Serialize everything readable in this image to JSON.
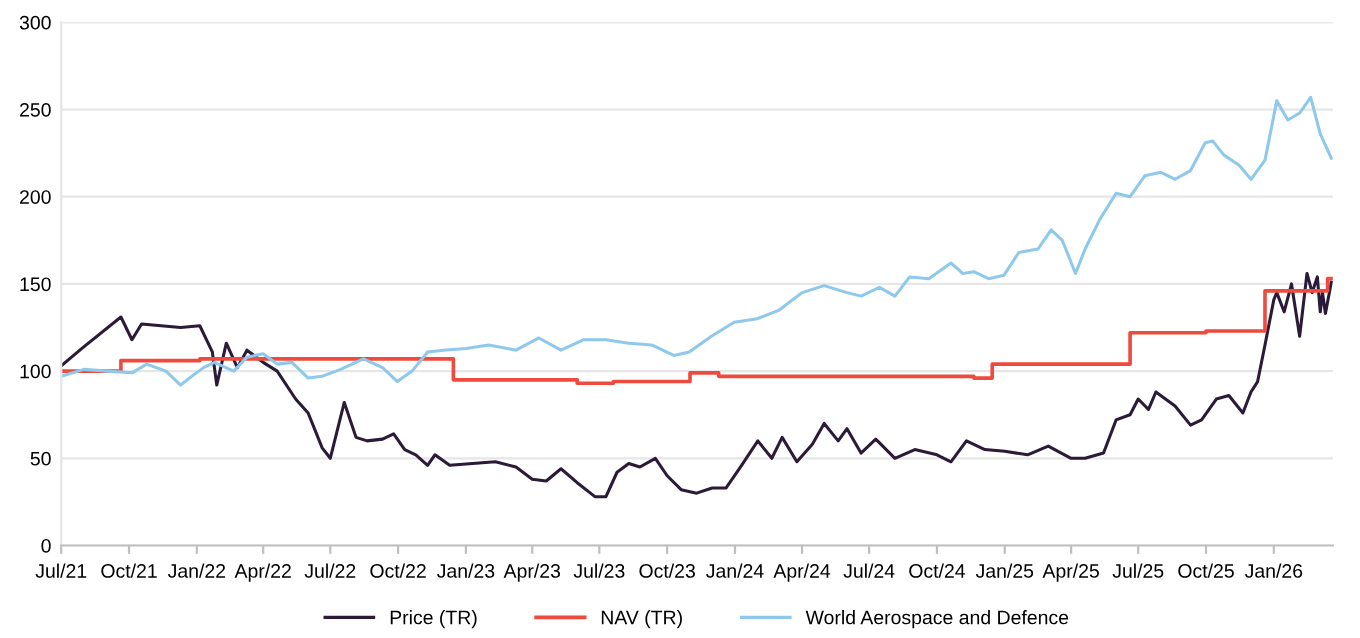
{
  "chart_data": {
    "type": "line",
    "xlim": [
      "2021-07-01",
      "2026-03-22"
    ],
    "xticks": [
      {
        "value": "2021-07-01",
        "label": "Jul/21"
      },
      {
        "value": "2021-10-01",
        "label": "Oct/21"
      },
      {
        "value": "2022-01-01",
        "label": "Jan/22"
      },
      {
        "value": "2022-04-01",
        "label": "Apr/22"
      },
      {
        "value": "2022-07-01",
        "label": "Jul/22"
      },
      {
        "value": "2022-10-01",
        "label": "Oct/22"
      },
      {
        "value": "2023-01-01",
        "label": "Jan/23"
      },
      {
        "value": "2023-04-01",
        "label": "Apr/23"
      },
      {
        "value": "2023-07-01",
        "label": "Jul/23"
      },
      {
        "value": "2023-10-01",
        "label": "Oct/23"
      },
      {
        "value": "2024-01-01",
        "label": "Jan/24"
      },
      {
        "value": "2024-04-01",
        "label": "Apr/24"
      },
      {
        "value": "2024-07-01",
        "label": "Jul/24"
      },
      {
        "value": "2024-10-01",
        "label": "Oct/24"
      },
      {
        "value": "2025-01-01",
        "label": "Jan/25"
      },
      {
        "value": "2025-04-01",
        "label": "Apr/25"
      },
      {
        "value": "2025-07-01",
        "label": "Jul/25"
      },
      {
        "value": "2025-10-01",
        "label": "Oct/25"
      },
      {
        "value": "2026-01-01",
        "label": "Jan/26"
      }
    ],
    "ylim": [
      0,
      300
    ],
    "yticks": [
      0,
      50,
      100,
      150,
      200,
      250,
      300
    ],
    "grid": "y",
    "legend": "bottom",
    "tick_labels": true,
    "series": [
      {
        "name": "Price (TR)",
        "color": "#2b1a38",
        "x": [
          "2021-07-01",
          "2021-08-01",
          "2021-09-20",
          "2021-10-05",
          "2021-10-18",
          "2021-12-10",
          "2022-01-05",
          "2022-01-22",
          "2022-01-28",
          "2022-02-10",
          "2022-02-25",
          "2022-03-10",
          "2022-04-01",
          "2022-04-20",
          "2022-05-15",
          "2022-06-01",
          "2022-06-20",
          "2022-07-01",
          "2022-07-20",
          "2022-08-05",
          "2022-08-20",
          "2022-09-10",
          "2022-09-25",
          "2022-10-10",
          "2022-10-25",
          "2022-11-10",
          "2022-11-20",
          "2022-12-10",
          "2023-01-10",
          "2023-02-10",
          "2023-03-10",
          "2023-04-01",
          "2023-04-20",
          "2023-05-10",
          "2023-06-01",
          "2023-06-25",
          "2023-07-10",
          "2023-07-25",
          "2023-08-10",
          "2023-08-25",
          "2023-09-15",
          "2023-10-01",
          "2023-10-20",
          "2023-11-10",
          "2023-12-01",
          "2023-12-20",
          "2024-01-10",
          "2024-02-01",
          "2024-02-20",
          "2024-03-05",
          "2024-03-25",
          "2024-04-15",
          "2024-05-01",
          "2024-05-20",
          "2024-06-01",
          "2024-06-20",
          "2024-07-10",
          "2024-08-05",
          "2024-09-01",
          "2024-10-01",
          "2024-10-20",
          "2024-11-10",
          "2024-12-05",
          "2025-01-01",
          "2025-02-01",
          "2025-03-01",
          "2025-04-01",
          "2025-04-20",
          "2025-05-15",
          "2025-06-01",
          "2025-06-20",
          "2025-07-01",
          "2025-07-15",
          "2025-07-25",
          "2025-08-20",
          "2025-09-10",
          "2025-09-25",
          "2025-10-15",
          "2025-11-01",
          "2025-11-20",
          "2025-12-01",
          "2025-12-10",
          "2025-12-20",
          "2026-01-01",
          "2026-01-05",
          "2026-01-15",
          "2026-01-25",
          "2026-02-05",
          "2026-02-15",
          "2026-02-22",
          "2026-03-01",
          "2026-03-05",
          "2026-03-08",
          "2026-03-12",
          "2026-03-20"
        ],
        "values": [
          103,
          114,
          131,
          118,
          127,
          125,
          126,
          111,
          92,
          116,
          102,
          112,
          105,
          100,
          84,
          76,
          56,
          50,
          82,
          62,
          60,
          61,
          64,
          55,
          52,
          46,
          52,
          46,
          47,
          48,
          45,
          38,
          37,
          44,
          36,
          28,
          28,
          42,
          47,
          45,
          50,
          40,
          32,
          30,
          33,
          33,
          46,
          60,
          50,
          62,
          48,
          58,
          70,
          60,
          67,
          53,
          61,
          50,
          55,
          52,
          48,
          60,
          55,
          54,
          52,
          57,
          50,
          50,
          53,
          72,
          75,
          84,
          78,
          88,
          80,
          69,
          72,
          84,
          86,
          76,
          88,
          94,
          115,
          141,
          145,
          134,
          150,
          120,
          156,
          145,
          154,
          134,
          145,
          133,
          151
        ]
      },
      {
        "name": "NAV (TR)",
        "color": "#ee4a3d",
        "type": "step",
        "x": [
          "2021-07-01",
          "2021-09-20",
          "2022-01-05",
          "2022-12-15",
          "2023-06-01",
          "2023-07-20",
          "2023-11-01",
          "2023-12-10",
          "2024-11-20",
          "2024-12-15",
          "2025-06-20",
          "2025-10-01",
          "2025-12-20",
          "2026-03-15",
          "2026-03-20"
        ],
        "values": [
          100,
          106,
          107,
          95,
          93,
          94,
          99,
          97,
          96,
          104,
          122,
          123,
          146,
          153,
          153
        ]
      },
      {
        "name": "World Aerospace and Defence",
        "color": "#8ec9ec",
        "x": [
          "2021-07-01",
          "2021-08-01",
          "2021-09-01",
          "2021-10-05",
          "2021-10-25",
          "2021-11-20",
          "2021-12-10",
          "2021-12-25",
          "2022-01-10",
          "2022-01-25",
          "2022-02-20",
          "2022-03-10",
          "2022-04-01",
          "2022-04-20",
          "2022-05-10",
          "2022-06-01",
          "2022-06-20",
          "2022-07-15",
          "2022-08-15",
          "2022-09-10",
          "2022-09-30",
          "2022-10-20",
          "2022-11-10",
          "2022-12-01",
          "2023-01-01",
          "2023-02-01",
          "2023-03-10",
          "2023-04-10",
          "2023-05-10",
          "2023-06-10",
          "2023-07-10",
          "2023-08-10",
          "2023-09-10",
          "2023-10-10",
          "2023-10-31",
          "2023-11-30",
          "2023-12-31",
          "2024-01-31",
          "2024-03-01",
          "2024-04-01",
          "2024-05-01",
          "2024-06-01",
          "2024-06-20",
          "2024-07-15",
          "2024-08-05",
          "2024-08-25",
          "2024-09-20",
          "2024-10-20",
          "2024-11-05",
          "2024-11-20",
          "2024-12-10",
          "2024-12-31",
          "2025-01-20",
          "2025-02-15",
          "2025-03-05",
          "2025-03-20",
          "2025-04-07",
          "2025-04-20",
          "2025-05-10",
          "2025-06-01",
          "2025-06-20",
          "2025-07-10",
          "2025-08-01",
          "2025-08-20",
          "2025-09-10",
          "2025-09-30",
          "2025-10-10",
          "2025-10-25",
          "2025-11-15",
          "2025-12-01",
          "2025-12-20",
          "2026-01-05",
          "2026-01-20",
          "2026-02-05",
          "2026-02-20",
          "2026-03-05",
          "2026-03-20"
        ],
        "values": [
          97,
          101,
          100,
          99,
          104,
          100,
          92,
          97,
          102,
          105,
          100,
          108,
          110,
          104,
          105,
          96,
          97,
          101,
          107,
          102,
          94,
          100,
          111,
          112,
          113,
          115,
          112,
          119,
          112,
          118,
          118,
          116,
          115,
          109,
          111,
          120,
          128,
          130,
          135,
          145,
          149,
          145,
          143,
          148,
          143,
          154,
          153,
          162,
          156,
          157,
          153,
          155,
          168,
          170,
          181,
          175,
          156,
          170,
          187,
          202,
          200,
          212,
          214,
          210,
          215,
          231,
          232,
          224,
          218,
          210,
          221,
          255,
          244,
          248,
          257,
          236,
          222
        ]
      }
    ]
  }
}
